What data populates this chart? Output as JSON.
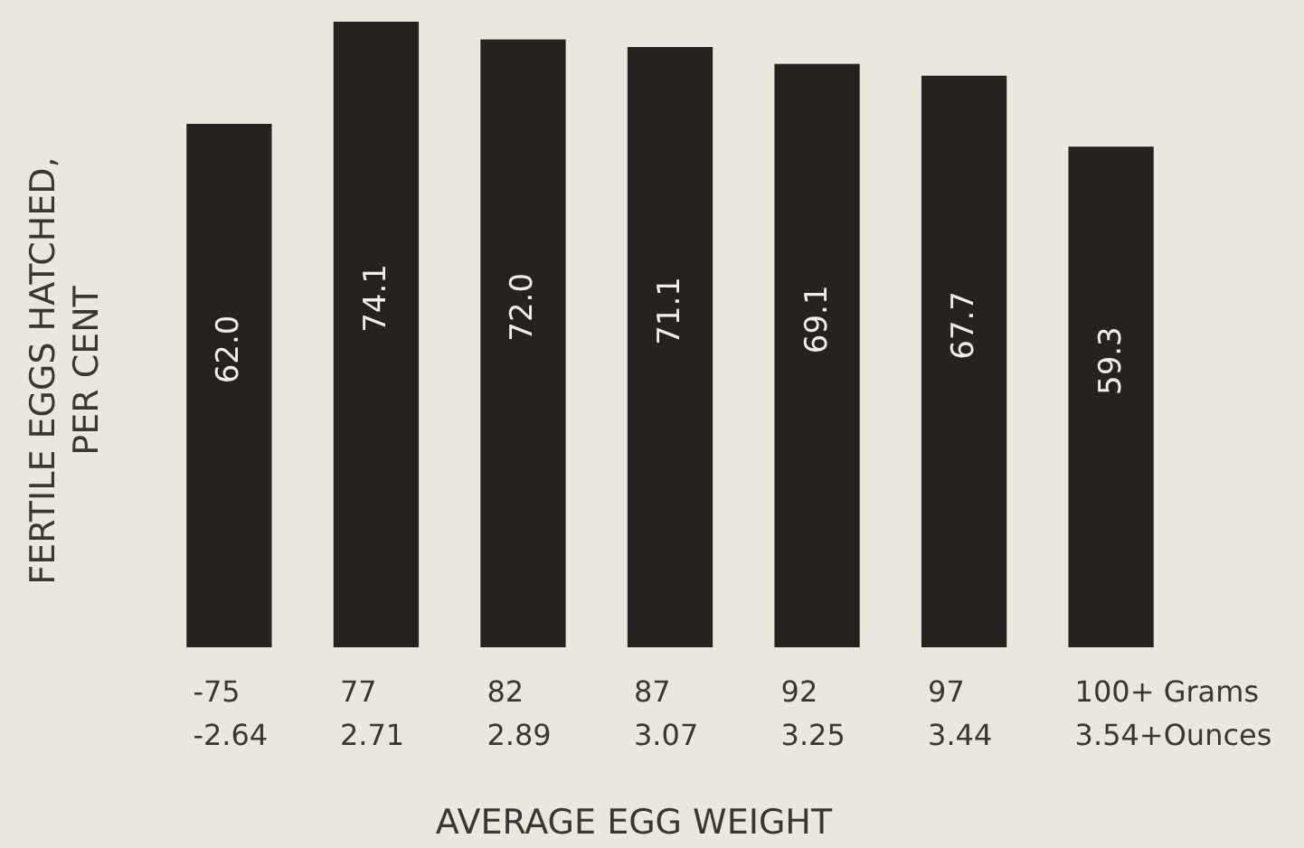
{
  "chart_data": {
    "type": "bar",
    "xlabel": "AVERAGE EGG WEIGHT",
    "ylabel": "FERTILE EGGS HATCHED,\nPER CENT",
    "categories": [
      "-75\n-2.64",
      "77\n2.71",
      "82\n2.89",
      "87\n3.07",
      "92\n3.25",
      "97\n3.44",
      "100+ Grams\n3.54+Ounces"
    ],
    "values": [
      62.0,
      74.1,
      72.0,
      71.1,
      69.1,
      67.7,
      59.3
    ],
    "color": "#252220",
    "value_labels": [
      "62.0",
      "74.1",
      "72.0",
      "71.1",
      "69.1",
      "67.7",
      "59.3"
    ]
  }
}
